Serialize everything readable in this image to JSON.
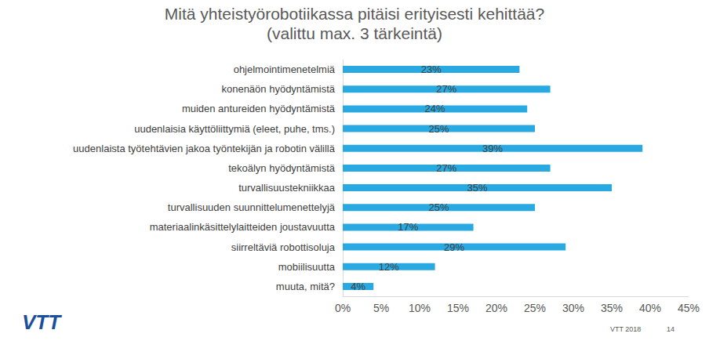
{
  "chart_data": {
    "type": "bar",
    "orientation": "horizontal",
    "title": "Mitä yhteistyörobotiikassa pitäisi erityisesti kehittää?",
    "subtitle": "(valittu max. 3 tärkeintä)",
    "categories": [
      "ohjelmointimenetelmiä",
      "konenäön hyödyntämistä",
      "muiden antureiden hyödyntämistä",
      "uudenlaisia käyttöliittymiä (eleet, puhe, tms.)",
      "uudenlaista työtehtävien jakoa työntekijän ja robotin välillä",
      "tekoälyn hyödyntämistä",
      "turvallisuustekniikkaa",
      "turvallisuuden suunnittelumenettelyjä",
      "materiaalinkäsittelylaitteiden joustavuutta",
      "siirreltäviä robottisoluja",
      "mobiilisuutta",
      "muuta, mitä?"
    ],
    "values": [
      23,
      27,
      24,
      25,
      39,
      27,
      35,
      25,
      17,
      29,
      12,
      4
    ],
    "value_labels": [
      "23%",
      "27%",
      "24%",
      "25%",
      "39%",
      "27%",
      "35%",
      "25%",
      "17%",
      "29%",
      "12%",
      "4%"
    ],
    "data_labels": true,
    "color": "#29a9e1",
    "xlim": [
      0,
      45
    ],
    "xticks": [
      {
        "value": 0,
        "label": "0%"
      },
      {
        "value": 5,
        "label": "5%"
      },
      {
        "value": 10,
        "label": "10%"
      },
      {
        "value": 15,
        "label": "15%"
      },
      {
        "value": 20,
        "label": "20%"
      },
      {
        "value": 25,
        "label": "25%"
      },
      {
        "value": 30,
        "label": "30%"
      },
      {
        "value": 35,
        "label": "35%"
      },
      {
        "value": 40,
        "label": "40%"
      },
      {
        "value": 45,
        "label": "45%"
      }
    ],
    "grid": false,
    "annotations": [
      "VTT",
      "VTT 2018",
      "14"
    ]
  }
}
